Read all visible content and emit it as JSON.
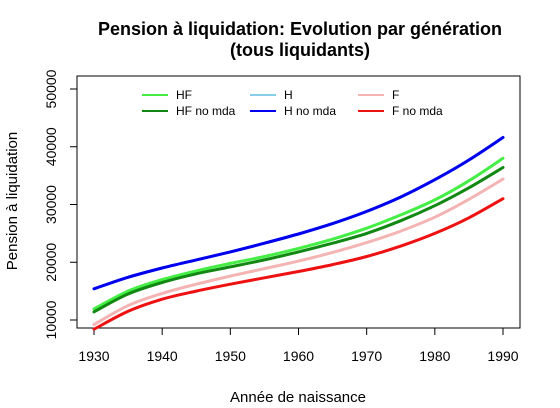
{
  "chart_data": {
    "type": "line",
    "title_line1": "Pension à liquidation: Evolution par génération",
    "title_line2": "(tous liquidants)",
    "xlabel": "Année de naissance",
    "ylabel": "Pension à liquidation",
    "xlim": [
      1930,
      1990
    ],
    "ylim": [
      10000,
      50000
    ],
    "x_ticks": [
      1930,
      1940,
      1950,
      1960,
      1970,
      1980,
      1990
    ],
    "y_ticks": [
      10000,
      20000,
      30000,
      40000,
      50000
    ],
    "x": [
      1930,
      1935,
      1940,
      1945,
      1950,
      1955,
      1960,
      1965,
      1970,
      1975,
      1980,
      1985,
      1990
    ],
    "legend_position": "top",
    "series": [
      {
        "name": "HF",
        "color": "#44ee44",
        "values": [
          11900,
          15000,
          17000,
          18500,
          19800,
          21000,
          22400,
          24000,
          25900,
          28200,
          30800,
          34100,
          38000
        ]
      },
      {
        "name": "HF no mda",
        "color": "#118811",
        "values": [
          11400,
          14500,
          16500,
          18000,
          19200,
          20400,
          21800,
          23300,
          25000,
          27200,
          29800,
          32900,
          36400
        ]
      },
      {
        "name": "H",
        "color": "#87ceeb",
        "values": [
          15400,
          17400,
          19000,
          20400,
          21800,
          23300,
          24900,
          26700,
          28800,
          31300,
          34300,
          37700,
          41600
        ]
      },
      {
        "name": "H no mda",
        "color": "#0000ee",
        "values": [
          15400,
          17400,
          19000,
          20400,
          21800,
          23300,
          24900,
          26700,
          28800,
          31300,
          34300,
          37700,
          41600
        ]
      },
      {
        "name": "F",
        "color": "#f4b4b4",
        "values": [
          9200,
          12500,
          14600,
          16200,
          17600,
          18900,
          20200,
          21700,
          23400,
          25400,
          27800,
          30900,
          34400
        ]
      },
      {
        "name": "F no mda",
        "color": "#ee1111",
        "values": [
          8400,
          11500,
          13600,
          15000,
          16200,
          17300,
          18400,
          19600,
          21000,
          22800,
          25000,
          27700,
          31000
        ]
      }
    ]
  }
}
